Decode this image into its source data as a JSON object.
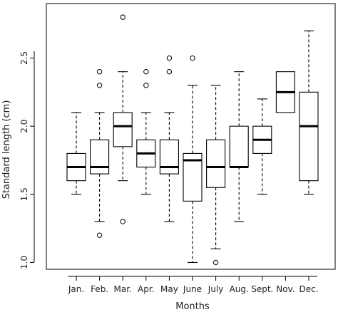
{
  "chart_data": {
    "type": "boxplot",
    "xlabel": "Months",
    "ylabel": "Standard length (cm)",
    "ylim": [
      0.95,
      2.9
    ],
    "yticks": [
      1.0,
      1.5,
      2.0,
      2.5
    ],
    "ytick_labels": [
      "1.0",
      "1.5",
      "2.0",
      "2.5"
    ],
    "grid": false,
    "categories": [
      "Jan.",
      "Feb.",
      "Mar.",
      "Apr.",
      "May",
      "June",
      "July",
      "Aug.",
      "Sept.",
      "Nov.",
      "Dec."
    ],
    "boxes": [
      {
        "min": 1.5,
        "q1": 1.6,
        "median": 1.7,
        "q3": 1.8,
        "max": 2.1,
        "outliers": []
      },
      {
        "min": 1.3,
        "q1": 1.65,
        "median": 1.7,
        "q3": 1.9,
        "max": 2.1,
        "outliers": [
          2.3,
          2.4,
          1.2
        ]
      },
      {
        "min": 1.6,
        "q1": 1.85,
        "median": 2.0,
        "q3": 2.1,
        "max": 2.4,
        "outliers": [
          2.8,
          1.3
        ]
      },
      {
        "min": 1.5,
        "q1": 1.7,
        "median": 1.8,
        "q3": 1.9,
        "max": 2.1,
        "outliers": [
          2.3,
          2.4
        ]
      },
      {
        "min": 1.3,
        "q1": 1.65,
        "median": 1.7,
        "q3": 1.9,
        "max": 2.1,
        "outliers": [
          2.4,
          2.5
        ]
      },
      {
        "min": 1.0,
        "q1": 1.45,
        "median": 1.75,
        "q3": 1.8,
        "max": 2.3,
        "outliers": [
          2.5
        ]
      },
      {
        "min": 1.1,
        "q1": 1.55,
        "median": 1.7,
        "q3": 1.9,
        "max": 2.3,
        "outliers": [
          1.0
        ]
      },
      {
        "min": 1.3,
        "q1": 1.7,
        "median": 1.7,
        "q3": 2.0,
        "max": 2.4,
        "outliers": []
      },
      {
        "min": 1.5,
        "q1": 1.8,
        "median": 1.9,
        "q3": 2.0,
        "max": 2.2,
        "outliers": []
      },
      {
        "min": 2.1,
        "q1": 2.1,
        "median": 2.25,
        "q3": 2.4,
        "max": 2.4,
        "outliers": []
      },
      {
        "min": 1.5,
        "q1": 1.6,
        "median": 2.0,
        "q3": 2.25,
        "max": 2.7,
        "outliers": []
      }
    ]
  }
}
